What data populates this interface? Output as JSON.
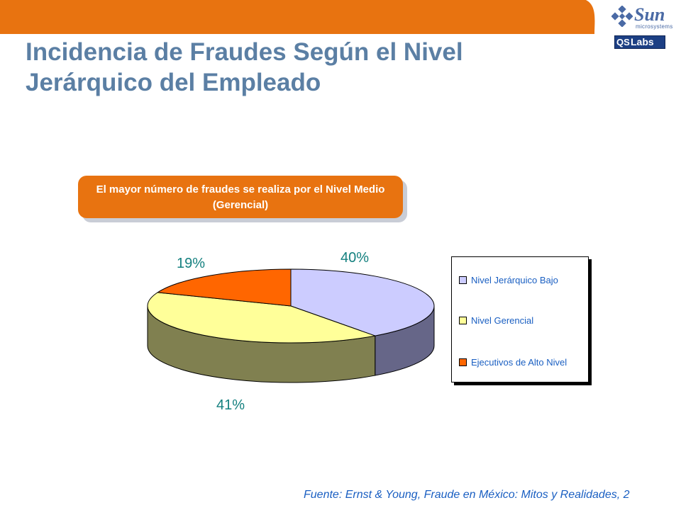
{
  "header": {
    "brand_color": "#e87310",
    "logo_sun_text": "Sun",
    "logo_sun_sub": "microsystems",
    "logo_qs_text": "QS",
    "logo_labs_text": "Labs"
  },
  "slide": {
    "title_line1": "Incidencia de Fraudes Según el Nivel",
    "title_line2": "Jerárquico del Empleado",
    "callout": "El mayor número de fraudes se realiza por el Nivel Medio (Gerencial)",
    "source": "Fuente: Ernst & Young, Fraude en México: Mitos y Realidades, 2"
  },
  "chart_data": {
    "type": "pie",
    "style": "3d",
    "title": "",
    "slices": [
      {
        "name": "Nivel Jerárquico Bajo",
        "value": 40,
        "label": "40%",
        "color": "#ccccff",
        "side_color": "#666688"
      },
      {
        "name": "Nivel Gerencial",
        "value": 41,
        "label": "41%",
        "color": "#ffff99",
        "side_color": "#808050"
      },
      {
        "name": "Ejecutivos de Alto Nivel",
        "value": 19,
        "label": "19%",
        "color": "#ff6600",
        "side_color": "#883300"
      }
    ],
    "legend": {
      "position": "right",
      "items": [
        "Nivel Jerárquico Bajo",
        "Nivel Gerencial",
        "Ejecutivos de Alto Nivel"
      ]
    }
  }
}
